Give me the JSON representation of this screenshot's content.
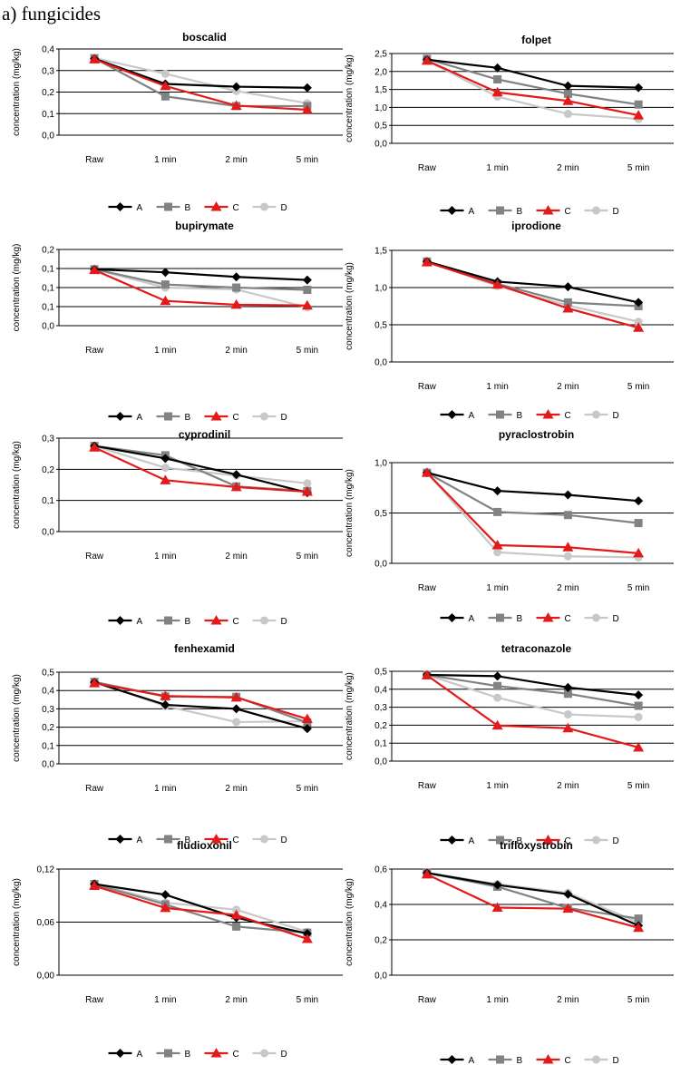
{
  "page": {
    "heading": "a) fungicides"
  },
  "legend_labels": [
    "A",
    "B",
    "C",
    "D"
  ],
  "series_colors": {
    "A": "#000000",
    "B": "#7f8384",
    "C": "#e41a1a",
    "D": "#c8c8c8"
  },
  "series_markers": {
    "A": "diamond",
    "B": "square",
    "C": "triangle",
    "D": "circle"
  },
  "chart_data": [
    {
      "type": "line",
      "title": "boscalid",
      "categories": [
        "Raw",
        "1 min",
        "2 min",
        "5 min"
      ],
      "ylabel": "concentration (mg/kg)",
      "ylim": [
        0,
        0.4
      ],
      "yticks": [
        "0,0",
        "0,1",
        "0,2",
        "0,3",
        "0,4"
      ],
      "series": [
        {
          "name": "A",
          "values": [
            0.355,
            0.238,
            0.225,
            0.22
          ]
        },
        {
          "name": "B",
          "values": [
            0.357,
            0.18,
            0.135,
            0.135
          ]
        },
        {
          "name": "C",
          "values": [
            0.352,
            0.228,
            0.137,
            0.118
          ]
        },
        {
          "name": "D",
          "values": [
            0.358,
            0.285,
            0.205,
            0.148
          ]
        }
      ]
    },
    {
      "type": "line",
      "title": "folpet",
      "categories": [
        "Raw",
        "1 min",
        "2 min",
        "5 min"
      ],
      "ylabel": "concentration (mg/kg)",
      "ylim": [
        0,
        2.5
      ],
      "yticks": [
        "0,0",
        "0,5",
        "1,0",
        "1,5",
        "2,0",
        "2,5"
      ],
      "series": [
        {
          "name": "A",
          "values": [
            2.33,
            2.1,
            1.6,
            1.55
          ]
        },
        {
          "name": "B",
          "values": [
            2.35,
            1.78,
            1.38,
            1.08
          ]
        },
        {
          "name": "C",
          "values": [
            2.3,
            1.42,
            1.18,
            0.78
          ]
        },
        {
          "name": "D",
          "values": [
            2.3,
            1.3,
            0.82,
            0.68
          ]
        }
      ]
    },
    {
      "type": "line",
      "title": "bupirymate",
      "categories": [
        "Raw",
        "1 min",
        "2 min",
        "5 min"
      ],
      "ylabel": "concentration (mg/kg)",
      "ylim": [
        0,
        0.2
      ],
      "yticks": [
        "0,0",
        "0,1",
        "0,1",
        "0,1",
        "0,2"
      ],
      "series": [
        {
          "name": "A",
          "values": [
            0.148,
            0.14,
            0.128,
            0.12
          ]
        },
        {
          "name": "B",
          "values": [
            0.148,
            0.108,
            0.1,
            0.094
          ]
        },
        {
          "name": "C",
          "values": [
            0.146,
            0.065,
            0.055,
            0.053
          ]
        },
        {
          "name": "D",
          "values": [
            0.148,
            0.1,
            0.095,
            0.048
          ]
        }
      ]
    },
    {
      "type": "line",
      "title": "iprodione",
      "categories": [
        "Raw",
        "1 min",
        "2 min",
        "5 min"
      ],
      "ylabel": "concentration (mg/kg)",
      "ylim": [
        0,
        1.5
      ],
      "yticks": [
        "0,0",
        "0,5",
        "1,0",
        "1,5"
      ],
      "series": [
        {
          "name": "A",
          "values": [
            1.35,
            1.08,
            1.01,
            0.8
          ]
        },
        {
          "name": "B",
          "values": [
            1.35,
            1.05,
            0.8,
            0.75
          ]
        },
        {
          "name": "C",
          "values": [
            1.34,
            1.04,
            0.72,
            0.46
          ]
        },
        {
          "name": "D",
          "values": [
            1.35,
            1.02,
            0.76,
            0.54
          ]
        }
      ]
    },
    {
      "type": "line",
      "title": "cyprodinil",
      "categories": [
        "Raw",
        "1 min",
        "2 min",
        "5 min"
      ],
      "ylabel": "concentration (mg/kg)",
      "ylim": [
        0,
        0.3
      ],
      "yticks": [
        "0,0",
        "0,1",
        "0,2",
        "0,3"
      ],
      "series": [
        {
          "name": "A",
          "values": [
            0.275,
            0.235,
            0.183,
            0.125
          ]
        },
        {
          "name": "B",
          "values": [
            0.275,
            0.245,
            0.145,
            0.13
          ]
        },
        {
          "name": "C",
          "values": [
            0.27,
            0.165,
            0.143,
            0.128
          ]
        },
        {
          "name": "D",
          "values": [
            0.275,
            0.205,
            0.18,
            0.155
          ]
        }
      ]
    },
    {
      "type": "line",
      "title": "pyraclostrobin",
      "categories": [
        "Raw",
        "1 min",
        "2 min",
        "5 min"
      ],
      "ylabel": "concentration (mg/kg)",
      "ylim": [
        0,
        1.0
      ],
      "yticks": [
        "0,0",
        "0,5",
        "1,0"
      ],
      "series": [
        {
          "name": "A",
          "values": [
            0.9,
            0.72,
            0.68,
            0.62
          ]
        },
        {
          "name": "B",
          "values": [
            0.9,
            0.51,
            0.48,
            0.4
          ]
        },
        {
          "name": "C",
          "values": [
            0.9,
            0.18,
            0.16,
            0.1
          ]
        },
        {
          "name": "D",
          "values": [
            0.9,
            0.11,
            0.07,
            0.06
          ]
        }
      ]
    },
    {
      "type": "line",
      "title": "fenhexamid",
      "categories": [
        "Raw",
        "1 min",
        "2 min",
        "5 min"
      ],
      "ylabel": "concentration (mg/kg)",
      "ylim": [
        0,
        0.5
      ],
      "yticks": [
        "0,0",
        "0,1",
        "0,2",
        "0,3",
        "0,4",
        "0,5"
      ],
      "series": [
        {
          "name": "A",
          "values": [
            0.445,
            0.322,
            0.3,
            0.192
          ]
        },
        {
          "name": "B",
          "values": [
            0.447,
            0.367,
            0.365,
            0.225
          ]
        },
        {
          "name": "C",
          "values": [
            0.44,
            0.37,
            0.362,
            0.245
          ]
        },
        {
          "name": "D",
          "values": [
            0.447,
            0.315,
            0.228,
            0.232
          ]
        }
      ]
    },
    {
      "type": "line",
      "title": "tetraconazole",
      "categories": [
        "Raw",
        "1 min",
        "2 min",
        "5 min"
      ],
      "ylabel": "concentration (mg/kg)",
      "ylim": [
        0,
        0.5
      ],
      "yticks": [
        "0,0",
        "0,1",
        "0,2",
        "0,3",
        "0,4",
        "0,5"
      ],
      "series": [
        {
          "name": "A",
          "values": [
            0.48,
            0.473,
            0.41,
            0.368
          ]
        },
        {
          "name": "B",
          "values": [
            0.48,
            0.418,
            0.375,
            0.308
          ]
        },
        {
          "name": "C",
          "values": [
            0.478,
            0.198,
            0.183,
            0.076
          ]
        },
        {
          "name": "D",
          "values": [
            0.48,
            0.353,
            0.26,
            0.245
          ]
        }
      ]
    },
    {
      "type": "line",
      "title": "fludioxonil",
      "categories": [
        "Raw",
        "1 min",
        "2 min",
        "5 min"
      ],
      "ylabel": "concentration (mg/kg)",
      "ylim": [
        0,
        0.12
      ],
      "yticks": [
        "0,00",
        "0,06",
        "0,12"
      ],
      "series": [
        {
          "name": "A",
          "values": [
            0.103,
            0.091,
            0.065,
            0.047
          ]
        },
        {
          "name": "B",
          "values": [
            0.103,
            0.08,
            0.055,
            0.048
          ]
        },
        {
          "name": "C",
          "values": [
            0.101,
            0.076,
            0.068,
            0.041
          ]
        },
        {
          "name": "D",
          "values": [
            0.104,
            0.082,
            0.074,
            0.049
          ]
        }
      ]
    },
    {
      "type": "line",
      "title": "trifloxystrobin",
      "categories": [
        "Raw",
        "1 min",
        "2 min",
        "5 min"
      ],
      "ylabel": "concentration (mg/kg)",
      "ylim": [
        0,
        0.6
      ],
      "yticks": [
        "0,0",
        "0,2",
        "0,4",
        "0,6"
      ],
      "series": [
        {
          "name": "A",
          "values": [
            0.578,
            0.51,
            0.458,
            0.28
          ]
        },
        {
          "name": "B",
          "values": [
            0.578,
            0.5,
            0.38,
            0.32
          ]
        },
        {
          "name": "C",
          "values": [
            0.57,
            0.382,
            0.376,
            0.268
          ]
        },
        {
          "name": "D",
          "values": [
            0.58,
            0.515,
            0.466,
            0.298
          ]
        }
      ]
    }
  ]
}
